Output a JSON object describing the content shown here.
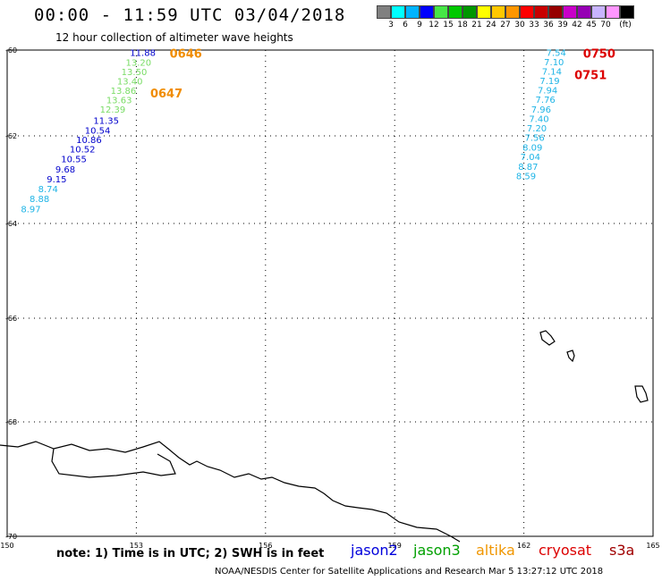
{
  "title": "00:00 - 11:59 UTC 03/04/2018",
  "subtitle": "12 hour collection of altimeter wave heights",
  "colorbar": {
    "colors": [
      "#808080",
      "#00ffff",
      "#00b4ff",
      "#0000ff",
      "#46e646",
      "#00c800",
      "#009600",
      "#ffff00",
      "#ffc800",
      "#ff9600",
      "#ff0000",
      "#c80000",
      "#960000",
      "#c800c8",
      "#9600b4",
      "#c8b4ff",
      "#ff96ff",
      "#000000"
    ],
    "labels": [
      "3",
      "6",
      "9",
      "12",
      "15",
      "18",
      "21",
      "24",
      "27",
      "30",
      "33",
      "36",
      "39",
      "42",
      "45",
      "70",
      "(ft)"
    ]
  },
  "axes": {
    "lon_ticks": [
      "150",
      "153",
      "156",
      "159",
      "162",
      "165"
    ],
    "lat_ticks": [
      "-60",
      "-62",
      "-64",
      "-66",
      "-68",
      "-70"
    ]
  },
  "tracks": [
    {
      "name": "jason2-altika-west",
      "time_labels": [
        {
          "text": "0646",
          "color": "#f08c00"
        },
        {
          "text": "0647",
          "color": "#f08c00"
        }
      ],
      "points": [
        {
          "lon": 153.15,
          "lat": -60.05,
          "value": "11.88",
          "color": "#0000cc"
        },
        {
          "lon": 153.05,
          "lat": -60.28,
          "value": "13.20",
          "color": "#78dc64"
        },
        {
          "lon": 152.95,
          "lat": -60.5,
          "value": "13.50",
          "color": "#78dc64"
        },
        {
          "lon": 152.85,
          "lat": -60.72,
          "value": "13.40",
          "color": "#78dc64"
        },
        {
          "lon": 152.7,
          "lat": -60.94,
          "value": "13.86",
          "color": "#78dc64"
        },
        {
          "lon": 152.6,
          "lat": -61.16,
          "value": "13.63",
          "color": "#78dc64"
        },
        {
          "lon": 152.45,
          "lat": -61.38,
          "value": "12.39",
          "color": "#78dc64"
        },
        {
          "lon": 152.3,
          "lat": -61.64,
          "value": "11.35",
          "color": "#0000cc"
        },
        {
          "lon": 152.1,
          "lat": -61.86,
          "value": "10.54",
          "color": "#0000cc"
        },
        {
          "lon": 151.9,
          "lat": -62.08,
          "value": "10.86",
          "color": "#0000cc"
        },
        {
          "lon": 151.75,
          "lat": -62.3,
          "value": "10.52",
          "color": "#0000cc"
        },
        {
          "lon": 151.55,
          "lat": -62.52,
          "value": "10.55",
          "color": "#0000cc"
        },
        {
          "lon": 151.35,
          "lat": -62.76,
          "value": "9.68",
          "color": "#0000cc"
        },
        {
          "lon": 151.15,
          "lat": -62.98,
          "value": "9.15",
          "color": "#0000cc"
        },
        {
          "lon": 150.95,
          "lat": -63.2,
          "value": "8.74",
          "color": "#1eb4e6"
        },
        {
          "lon": 150.75,
          "lat": -63.43,
          "value": "8.88",
          "color": "#1eb4e6"
        },
        {
          "lon": 150.55,
          "lat": -63.66,
          "value": "8.97",
          "color": "#1eb4e6"
        }
      ]
    },
    {
      "name": "cryosat-east",
      "time_labels": [
        {
          "text": "0750",
          "color": "#dc0000"
        },
        {
          "text": "0751",
          "color": "#dc0000"
        }
      ],
      "points": [
        {
          "lon": 162.75,
          "lat": -60.05,
          "value": "7.54",
          "color": "#1eb4e6"
        },
        {
          "lon": 162.7,
          "lat": -60.27,
          "value": "7.10",
          "color": "#1eb4e6"
        },
        {
          "lon": 162.65,
          "lat": -60.49,
          "value": "7.14",
          "color": "#1eb4e6"
        },
        {
          "lon": 162.6,
          "lat": -60.71,
          "value": "7.19",
          "color": "#1eb4e6"
        },
        {
          "lon": 162.55,
          "lat": -60.93,
          "value": "7.94",
          "color": "#1eb4e6"
        },
        {
          "lon": 162.5,
          "lat": -61.15,
          "value": "7.76",
          "color": "#1eb4e6"
        },
        {
          "lon": 162.4,
          "lat": -61.37,
          "value": "7.96",
          "color": "#1eb4e6"
        },
        {
          "lon": 162.35,
          "lat": -61.59,
          "value": "7.40",
          "color": "#1eb4e6"
        },
        {
          "lon": 162.3,
          "lat": -61.81,
          "value": "7.20",
          "color": "#1eb4e6"
        },
        {
          "lon": 162.25,
          "lat": -62.03,
          "value": "7.56",
          "color": "#1eb4e6"
        },
        {
          "lon": 162.2,
          "lat": -62.25,
          "value": "8.09",
          "color": "#1eb4e6"
        },
        {
          "lon": 162.15,
          "lat": -62.47,
          "value": "7.04",
          "color": "#1eb4e6"
        },
        {
          "lon": 162.1,
          "lat": -62.69,
          "value": "8.87",
          "color": "#1eb4e6"
        },
        {
          "lon": 162.05,
          "lat": -62.91,
          "value": "8.59",
          "color": "#1eb4e6"
        }
      ]
    }
  ],
  "footnote": "note: 1) Time is in UTC; 2) SWH is in feet",
  "legend": [
    {
      "label": "jason2",
      "color": "#0000dc"
    },
    {
      "label": "jason3",
      "color": "#00a000"
    },
    {
      "label": "altika",
      "color": "#f09600"
    },
    {
      "label": "cryosat",
      "color": "#dc0000"
    },
    {
      "label": "s3a",
      "color": "#a00000"
    }
  ],
  "credit": "NOAA/NESDIS Center for Satellite Applications and Research    Mar  5 13:27:12 UTC 2018"
}
